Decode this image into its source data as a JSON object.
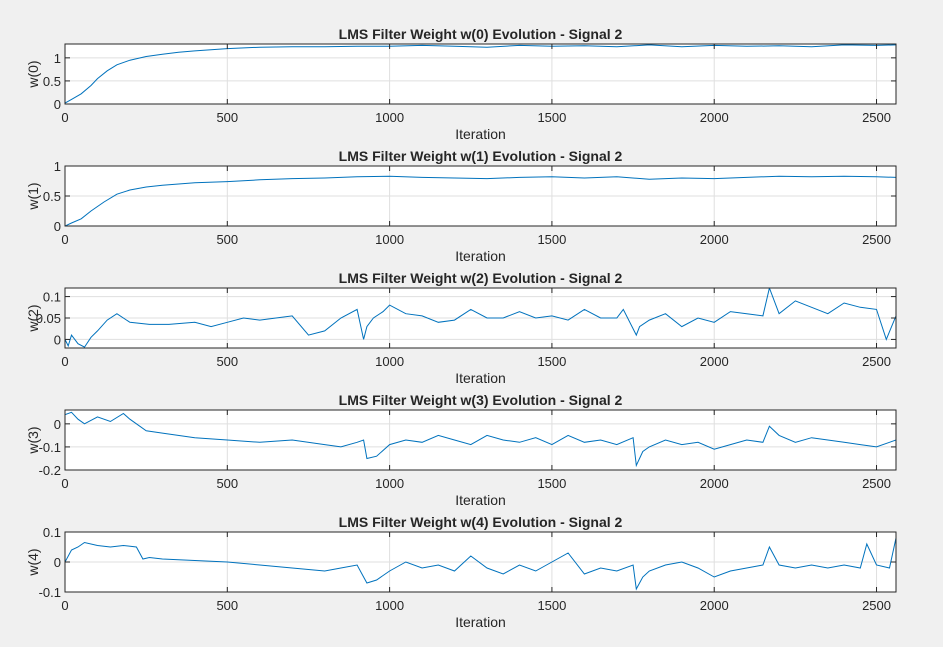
{
  "figure": {
    "background": "#f0f0f0"
  },
  "chart_data": [
    {
      "type": "line",
      "title": "LMS Filter Weight w(0) Evolution - Signal 2",
      "xlabel": "Iteration",
      "ylabel": "w(0)",
      "xlim": [
        0,
        2560
      ],
      "ylim": [
        0,
        1.3
      ],
      "xticks": [
        0,
        500,
        1000,
        1500,
        2000,
        2500
      ],
      "xtick_labels": [
        "0",
        "500",
        "1000",
        "1500",
        "2000",
        "2500"
      ],
      "yticks": [
        0,
        0.5,
        1
      ],
      "ytick_labels": [
        "0",
        "0.5",
        "1"
      ],
      "grid": true,
      "color": "#0072bd",
      "series": [
        {
          "x": [
            0,
            20,
            50,
            80,
            100,
            130,
            160,
            200,
            250,
            300,
            350,
            400,
            500,
            600,
            700,
            800,
            900,
            1000,
            1100,
            1200,
            1300,
            1400,
            1500,
            1600,
            1700,
            1800,
            1900,
            2000,
            2100,
            2200,
            2300,
            2400,
            2500,
            2560
          ],
          "y": [
            0.02,
            0.1,
            0.22,
            0.4,
            0.55,
            0.72,
            0.85,
            0.95,
            1.03,
            1.08,
            1.12,
            1.15,
            1.2,
            1.23,
            1.24,
            1.24,
            1.25,
            1.25,
            1.27,
            1.25,
            1.23,
            1.27,
            1.25,
            1.26,
            1.24,
            1.28,
            1.24,
            1.27,
            1.25,
            1.26,
            1.24,
            1.28,
            1.27,
            1.28
          ]
        }
      ]
    },
    {
      "type": "line",
      "title": "LMS Filter Weight w(1) Evolution - Signal 2",
      "xlabel": "Iteration",
      "ylabel": "w(1)",
      "xlim": [
        0,
        2560
      ],
      "ylim": [
        0,
        1
      ],
      "xticks": [
        0,
        500,
        1000,
        1500,
        2000,
        2500
      ],
      "xtick_labels": [
        "0",
        "500",
        "1000",
        "1500",
        "2000",
        "2500"
      ],
      "yticks": [
        0,
        0.5,
        1
      ],
      "ytick_labels": [
        "0",
        "0.5",
        "1"
      ],
      "grid": true,
      "color": "#0072bd",
      "series": [
        {
          "x": [
            0,
            20,
            50,
            80,
            120,
            160,
            200,
            250,
            300,
            400,
            500,
            600,
            700,
            800,
            900,
            1000,
            1100,
            1200,
            1300,
            1400,
            1500,
            1600,
            1700,
            1800,
            1900,
            2000,
            2100,
            2200,
            2300,
            2400,
            2500,
            2560
          ],
          "y": [
            0.0,
            0.05,
            0.12,
            0.25,
            0.4,
            0.53,
            0.6,
            0.65,
            0.68,
            0.72,
            0.74,
            0.77,
            0.79,
            0.8,
            0.82,
            0.83,
            0.81,
            0.8,
            0.79,
            0.81,
            0.82,
            0.8,
            0.82,
            0.78,
            0.8,
            0.79,
            0.81,
            0.83,
            0.82,
            0.83,
            0.82,
            0.81
          ]
        }
      ]
    },
    {
      "type": "line",
      "title": "LMS Filter Weight w(2) Evolution - Signal 2",
      "xlabel": "Iteration",
      "ylabel": "w(2)",
      "xlim": [
        0,
        2560
      ],
      "ylim": [
        -0.02,
        0.12
      ],
      "xticks": [
        0,
        500,
        1000,
        1500,
        2000,
        2500
      ],
      "xtick_labels": [
        "0",
        "500",
        "1000",
        "1500",
        "2000",
        "2500"
      ],
      "yticks": [
        0,
        0.05,
        0.1
      ],
      "ytick_labels": [
        "0",
        "0.05",
        "0.1"
      ],
      "grid": true,
      "color": "#0072bd",
      "series": [
        {
          "x": [
            0,
            10,
            20,
            40,
            60,
            80,
            100,
            130,
            160,
            200,
            260,
            320,
            400,
            450,
            500,
            550,
            600,
            650,
            700,
            750,
            800,
            850,
            900,
            920,
            930,
            950,
            980,
            1000,
            1050,
            1100,
            1150,
            1200,
            1250,
            1300,
            1350,
            1400,
            1450,
            1500,
            1550,
            1600,
            1650,
            1700,
            1720,
            1760,
            1770,
            1800,
            1850,
            1900,
            1950,
            2000,
            2050,
            2100,
            2150,
            2170,
            2200,
            2250,
            2300,
            2350,
            2400,
            2450,
            2500,
            2530,
            2560
          ],
          "y": [
            0.0,
            -0.015,
            0.01,
            -0.01,
            -0.018,
            0.005,
            0.02,
            0.045,
            0.06,
            0.04,
            0.035,
            0.035,
            0.04,
            0.03,
            0.04,
            0.05,
            0.045,
            0.05,
            0.055,
            0.01,
            0.02,
            0.05,
            0.07,
            0.0,
            0.03,
            0.05,
            0.065,
            0.08,
            0.06,
            0.055,
            0.04,
            0.045,
            0.07,
            0.05,
            0.05,
            0.065,
            0.05,
            0.055,
            0.045,
            0.07,
            0.05,
            0.05,
            0.07,
            0.01,
            0.03,
            0.045,
            0.06,
            0.03,
            0.05,
            0.04,
            0.065,
            0.06,
            0.055,
            0.12,
            0.06,
            0.09,
            0.075,
            0.06,
            0.085,
            0.075,
            0.07,
            0.0,
            0.055
          ]
        }
      ]
    },
    {
      "type": "line",
      "title": "LMS Filter Weight w(3) Evolution - Signal 2",
      "xlabel": "Iteration",
      "ylabel": "w(3)",
      "xlim": [
        0,
        2560
      ],
      "ylim": [
        -0.2,
        0.06
      ],
      "xticks": [
        0,
        500,
        1000,
        1500,
        2000,
        2500
      ],
      "xtick_labels": [
        "0",
        "500",
        "1000",
        "1500",
        "2000",
        "2500"
      ],
      "yticks": [
        -0.2,
        -0.1,
        0
      ],
      "ytick_labels": [
        "-0.2",
        "-0.1",
        "0"
      ],
      "grid": true,
      "color": "#0072bd",
      "series": [
        {
          "x": [
            0,
            20,
            40,
            60,
            100,
            140,
            180,
            200,
            250,
            300,
            400,
            500,
            600,
            700,
            800,
            850,
            900,
            920,
            930,
            960,
            1000,
            1050,
            1100,
            1150,
            1200,
            1250,
            1300,
            1350,
            1400,
            1450,
            1500,
            1550,
            1600,
            1650,
            1700,
            1750,
            1760,
            1780,
            1800,
            1850,
            1900,
            1950,
            2000,
            2050,
            2100,
            2150,
            2170,
            2200,
            2250,
            2300,
            2350,
            2400,
            2450,
            2500,
            2540,
            2560
          ],
          "y": [
            0.04,
            0.05,
            0.02,
            0.0,
            0.03,
            0.01,
            0.045,
            0.02,
            -0.03,
            -0.04,
            -0.06,
            -0.07,
            -0.08,
            -0.07,
            -0.09,
            -0.1,
            -0.08,
            -0.07,
            -0.15,
            -0.14,
            -0.09,
            -0.07,
            -0.08,
            -0.05,
            -0.07,
            -0.09,
            -0.05,
            -0.07,
            -0.08,
            -0.06,
            -0.09,
            -0.05,
            -0.08,
            -0.07,
            -0.09,
            -0.06,
            -0.18,
            -0.12,
            -0.1,
            -0.07,
            -0.09,
            -0.08,
            -0.11,
            -0.09,
            -0.07,
            -0.08,
            -0.01,
            -0.05,
            -0.08,
            -0.06,
            -0.07,
            -0.08,
            -0.09,
            -0.1,
            -0.08,
            -0.07
          ]
        }
      ]
    },
    {
      "type": "line",
      "title": "LMS Filter Weight w(4) Evolution - Signal 2",
      "xlabel": "Iteration",
      "ylabel": "w(4)",
      "xlim": [
        0,
        2560
      ],
      "ylim": [
        -0.1,
        0.1
      ],
      "xticks": [
        0,
        500,
        1000,
        1500,
        2000,
        2500
      ],
      "xtick_labels": [
        "0",
        "500",
        "1000",
        "1500",
        "2000",
        "2500"
      ],
      "yticks": [
        -0.1,
        0,
        0.1
      ],
      "ytick_labels": [
        "-0.1",
        "0",
        "0.1"
      ],
      "grid": true,
      "color": "#0072bd",
      "series": [
        {
          "x": [
            0,
            20,
            40,
            60,
            100,
            140,
            180,
            220,
            240,
            260,
            300,
            400,
            500,
            600,
            700,
            800,
            850,
            900,
            920,
            930,
            960,
            1000,
            1050,
            1100,
            1150,
            1200,
            1250,
            1300,
            1350,
            1400,
            1450,
            1500,
            1550,
            1600,
            1650,
            1700,
            1750,
            1760,
            1780,
            1800,
            1850,
            1900,
            1950,
            2000,
            2050,
            2100,
            2150,
            2170,
            2200,
            2250,
            2300,
            2350,
            2400,
            2450,
            2470,
            2500,
            2540,
            2560
          ],
          "y": [
            0.0,
            0.04,
            0.05,
            0.065,
            0.055,
            0.05,
            0.055,
            0.05,
            0.01,
            0.015,
            0.01,
            0.005,
            0.0,
            -0.01,
            -0.02,
            -0.03,
            -0.02,
            -0.01,
            -0.05,
            -0.07,
            -0.06,
            -0.03,
            0.0,
            -0.02,
            -0.01,
            -0.03,
            0.02,
            -0.02,
            -0.04,
            -0.01,
            -0.03,
            0.0,
            0.03,
            -0.04,
            -0.02,
            -0.03,
            -0.01,
            -0.09,
            -0.05,
            -0.03,
            -0.01,
            0.0,
            -0.02,
            -0.05,
            -0.03,
            -0.02,
            -0.01,
            0.05,
            -0.01,
            -0.02,
            -0.01,
            -0.02,
            -0.01,
            -0.02,
            0.06,
            -0.01,
            -0.02,
            0.08
          ]
        }
      ]
    }
  ]
}
